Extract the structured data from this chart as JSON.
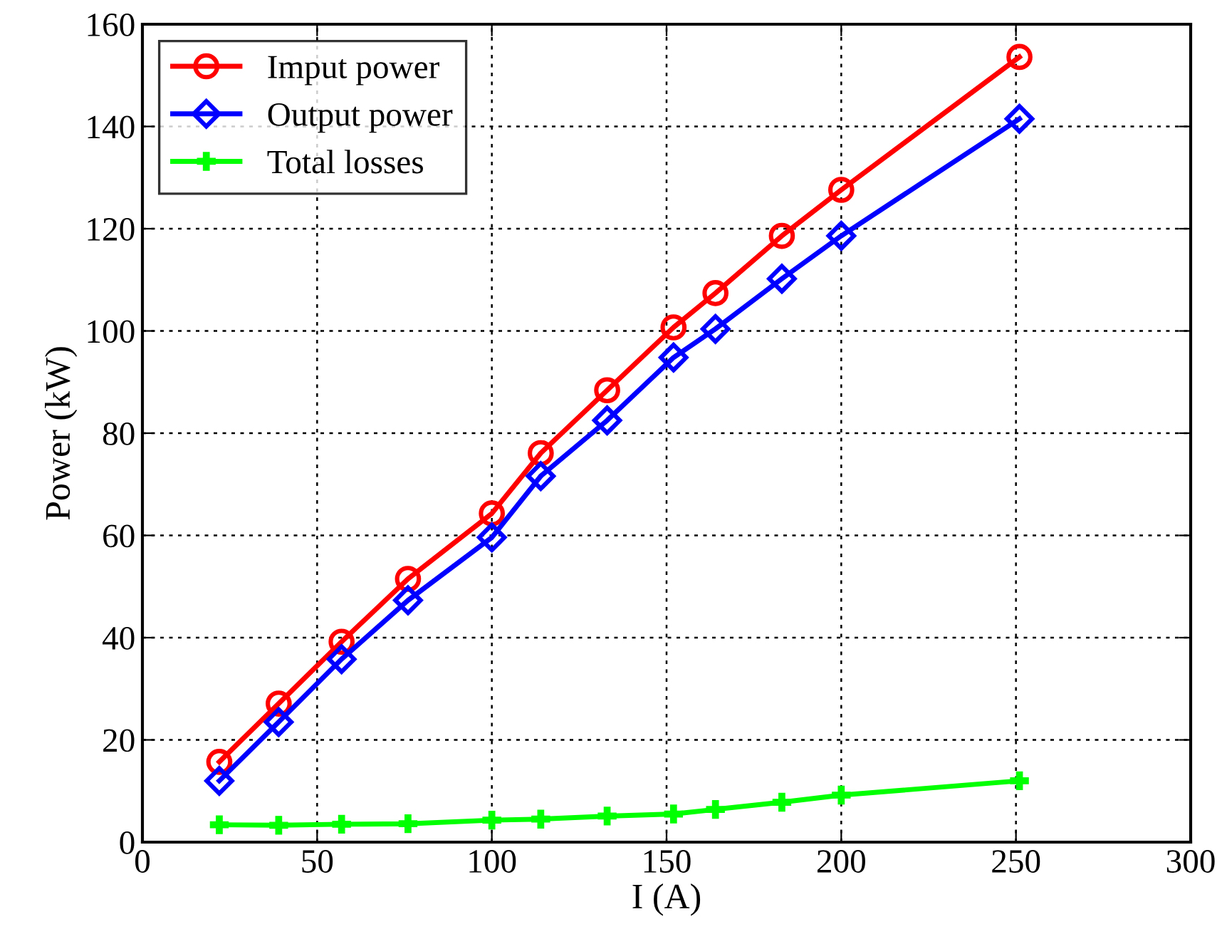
{
  "chart_data": {
    "type": "line",
    "xlabel": "I (A)",
    "ylabel": "Power (kW)",
    "xlim": [
      0,
      300
    ],
    "xticks": [
      0,
      50,
      100,
      150,
      200,
      250,
      300
    ],
    "ylim": [
      0,
      160
    ],
    "yticks": [
      0,
      20,
      40,
      60,
      80,
      100,
      120,
      140,
      160
    ],
    "grid": true,
    "legend": "top left",
    "line_style": "solid",
    "series": [
      {
        "name": "Imput power",
        "color": "#ff0000",
        "marker": "circle",
        "x": [
          22,
          39,
          57,
          76,
          100,
          114,
          133,
          152,
          164,
          183,
          200,
          251
        ],
        "values": [
          15.7,
          27.1,
          39.2,
          51.5,
          64.3,
          76.1,
          88.4,
          100.7,
          107.4,
          118.6,
          127.6,
          153.6
        ]
      },
      {
        "name": "Output power",
        "color": "#0000ff",
        "marker": "diamond",
        "x": [
          22,
          39,
          57,
          76,
          100,
          114,
          133,
          152,
          164,
          183,
          200,
          251
        ],
        "values": [
          12.0,
          23.5,
          35.8,
          47.3,
          59.6,
          71.6,
          82.5,
          94.8,
          100.4,
          110.2,
          118.6,
          141.5
        ]
      },
      {
        "name": "Total losses",
        "color": "#00ff00",
        "marker": "cross",
        "x": [
          22,
          39,
          57,
          76,
          100,
          114,
          133,
          152,
          164,
          183,
          200,
          251
        ],
        "values": [
          3.4,
          3.3,
          3.5,
          3.6,
          4.3,
          4.5,
          5.1,
          5.5,
          6.4,
          7.8,
          9.2,
          12.0
        ]
      }
    ]
  }
}
